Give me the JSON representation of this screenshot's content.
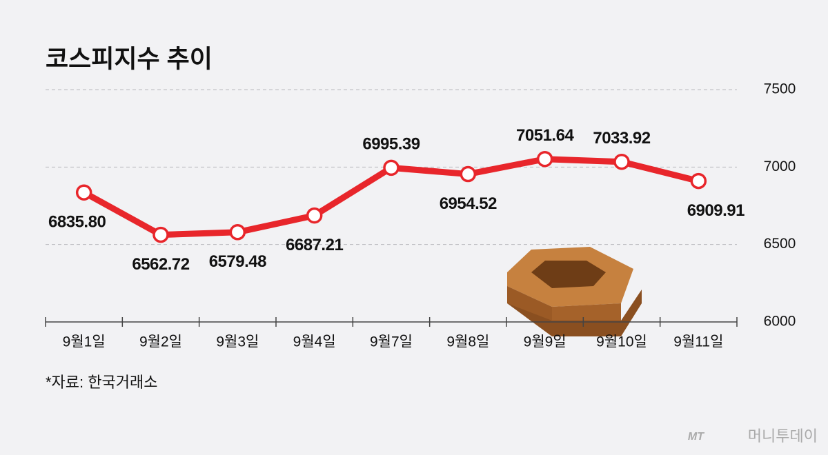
{
  "chart_data": {
    "type": "line",
    "title": "코스피지수 추이",
    "categories": [
      "9월1일",
      "9월2일",
      "9월3일",
      "9월4일",
      "9월7일",
      "9월8일",
      "9월9일",
      "9월10일",
      "9월11일"
    ],
    "values": [
      6835.8,
      6562.72,
      6579.48,
      6687.21,
      6995.39,
      6954.52,
      7051.64,
      7033.92,
      6909.91
    ],
    "value_labels": [
      "6835.80",
      "6562.72",
      "6579.48",
      "6687.21",
      "6995.39",
      "6954.52",
      "7051.64",
      "7033.92",
      "6909.91"
    ],
    "color": "#e8262b",
    "ylim": [
      6000,
      7500
    ],
    "yticks": [
      6000,
      6500,
      7000,
      7500
    ],
    "grid": true,
    "source": "*자료: 한국거래소",
    "watermark": "머니투데이",
    "watermark_logo": "MT"
  }
}
